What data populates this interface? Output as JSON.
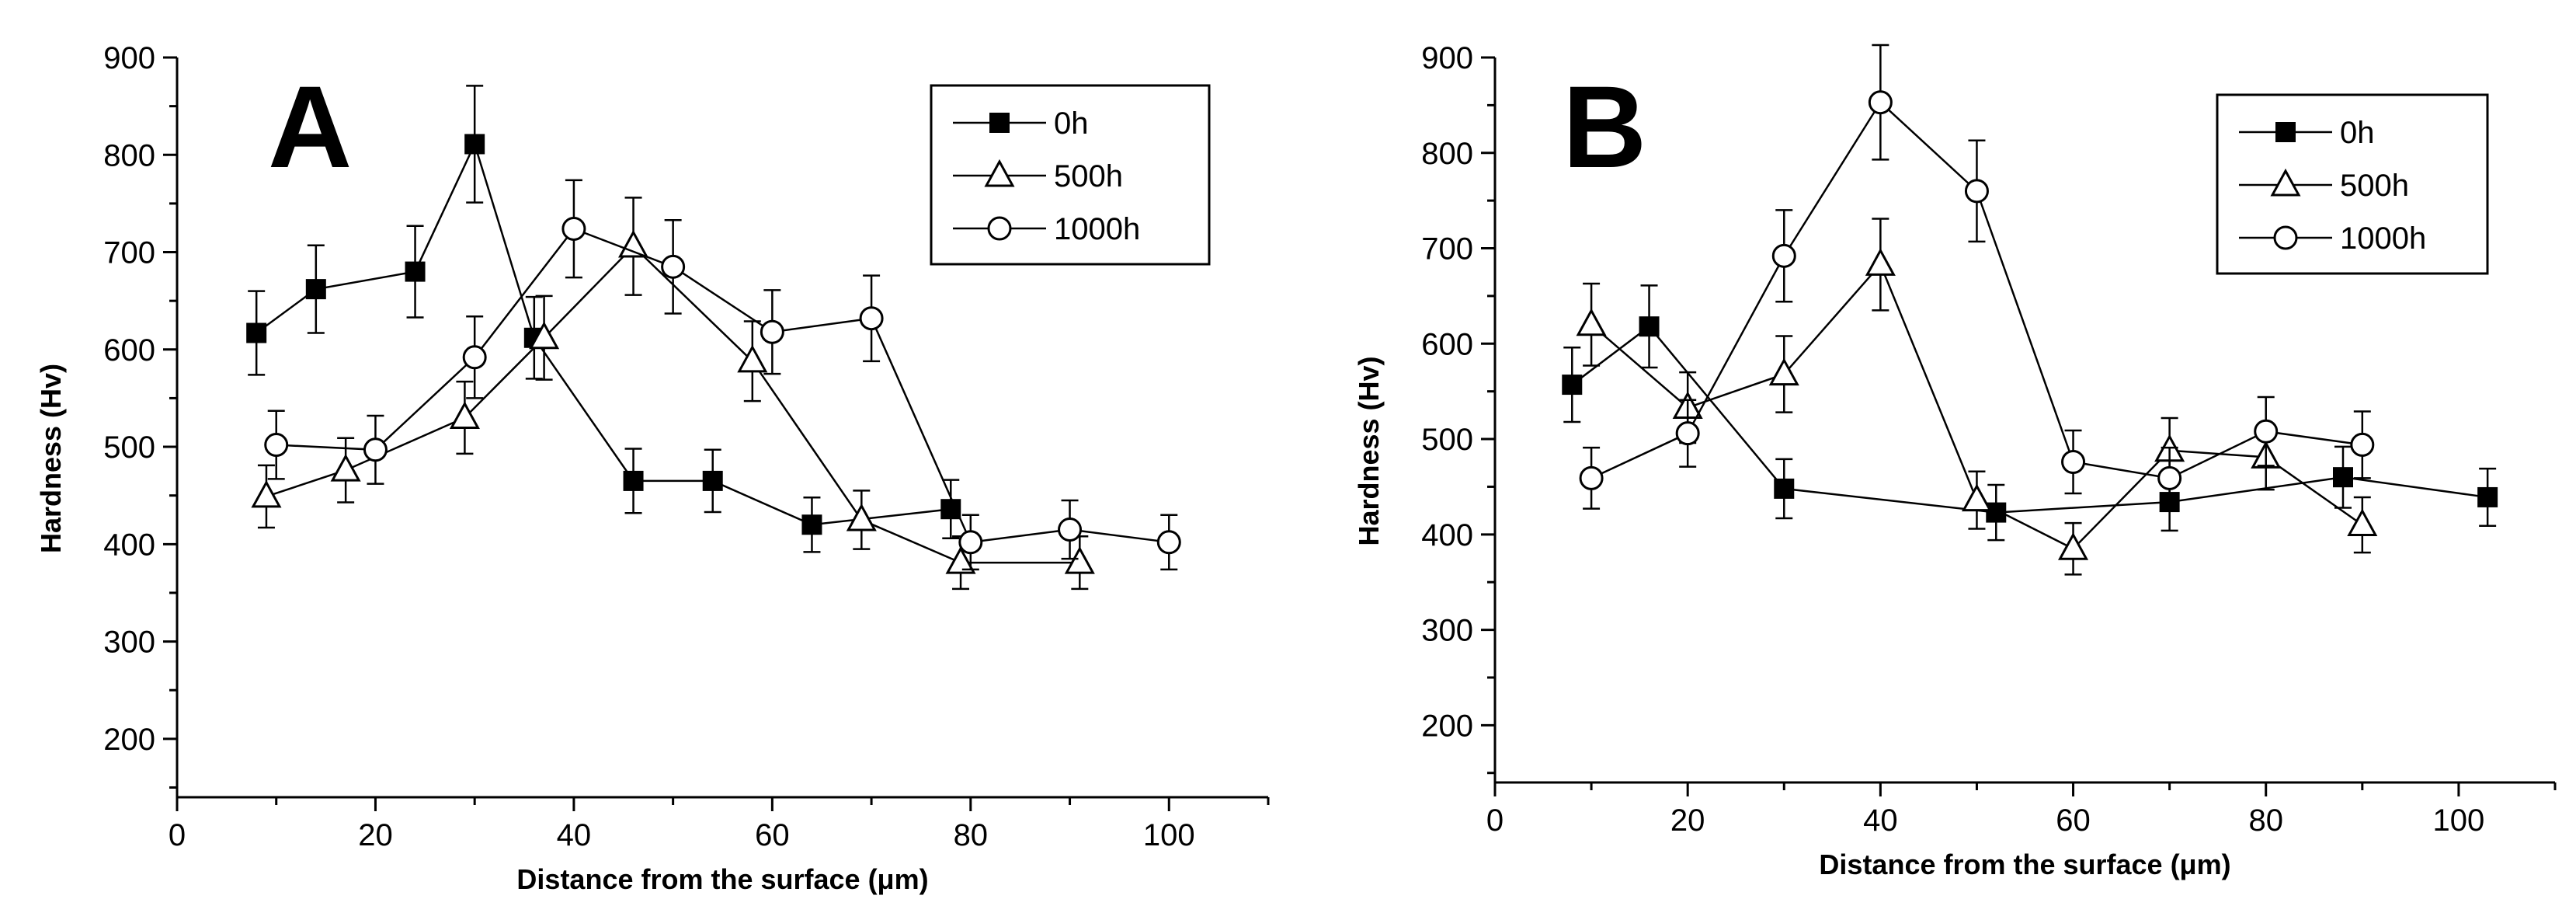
{
  "chart_data": [
    {
      "type": "scatter",
      "panel_label": "A",
      "xlabel": "Distance from the surface (μm)",
      "ylabel": "Hardness (Hv)",
      "xlim": [
        0,
        110
      ],
      "ylim": [
        140,
        900
      ],
      "x_ticks": [
        0,
        20,
        40,
        60,
        80,
        100
      ],
      "y_ticks": [
        200,
        300,
        400,
        500,
        600,
        700,
        800,
        900
      ],
      "legend_position": "top-right",
      "series": [
        {
          "name": "0h",
          "marker": "filled-square",
          "points": [
            {
              "x": 8,
              "y": 617,
              "err": 43
            },
            {
              "x": 14,
              "y": 662,
              "err": 45
            },
            {
              "x": 24,
              "y": 680,
              "err": 47
            },
            {
              "x": 30,
              "y": 811,
              "err": 60
            },
            {
              "x": 36,
              "y": 612,
              "err": 42
            },
            {
              "x": 46,
              "y": 465,
              "err": 33
            },
            {
              "x": 54,
              "y": 465,
              "err": 32
            },
            {
              "x": 64,
              "y": 420,
              "err": 28
            },
            {
              "x": 78,
              "y": 436,
              "err": 30
            }
          ]
        },
        {
          "name": "500h",
          "marker": "open-triangle",
          "points": [
            {
              "x": 9,
              "y": 449,
              "err": 32
            },
            {
              "x": 17,
              "y": 476,
              "err": 33
            },
            {
              "x": 29,
              "y": 530,
              "err": 37
            },
            {
              "x": 37,
              "y": 612,
              "err": 43
            },
            {
              "x": 46,
              "y": 706,
              "err": 50
            },
            {
              "x": 58,
              "y": 588,
              "err": 41
            },
            {
              "x": 69,
              "y": 425,
              "err": 30
            },
            {
              "x": 79,
              "y": 381,
              "err": 27
            },
            {
              "x": 91,
              "y": 381,
              "err": 27
            }
          ]
        },
        {
          "name": "1000h",
          "marker": "open-circle",
          "points": [
            {
              "x": 10,
              "y": 502,
              "err": 35
            },
            {
              "x": 20,
              "y": 497,
              "err": 35
            },
            {
              "x": 30,
              "y": 592,
              "err": 42
            },
            {
              "x": 40,
              "y": 724,
              "err": 50
            },
            {
              "x": 50,
              "y": 685,
              "err": 48
            },
            {
              "x": 60,
              "y": 618,
              "err": 43
            },
            {
              "x": 70,
              "y": 632,
              "err": 44
            },
            {
              "x": 80,
              "y": 402,
              "err": 28
            },
            {
              "x": 90,
              "y": 415,
              "err": 30
            },
            {
              "x": 100,
              "y": 402,
              "err": 28
            }
          ]
        }
      ]
    },
    {
      "type": "scatter",
      "panel_label": "B",
      "xlabel": "Distance from the surface (μm)",
      "ylabel": "Hardness (Hv)",
      "xlim": [
        0,
        110
      ],
      "ylim": [
        140,
        900
      ],
      "x_ticks": [
        0,
        20,
        40,
        60,
        80,
        100
      ],
      "y_ticks": [
        200,
        300,
        400,
        500,
        600,
        700,
        800,
        900
      ],
      "legend_position": "top-right",
      "series": [
        {
          "name": "0h",
          "marker": "filled-square",
          "points": [
            {
              "x": 8,
              "y": 557,
              "err": 39
            },
            {
              "x": 16,
              "y": 618,
              "err": 43
            },
            {
              "x": 30,
              "y": 448,
              "err": 31
            },
            {
              "x": 52,
              "y": 423,
              "err": 29
            },
            {
              "x": 70,
              "y": 434,
              "err": 30
            },
            {
              "x": 88,
              "y": 460,
              "err": 32
            },
            {
              "x": 103,
              "y": 439,
              "err": 30
            }
          ]
        },
        {
          "name": "500h",
          "marker": "open-triangle",
          "points": [
            {
              "x": 10,
              "y": 620,
              "err": 43
            },
            {
              "x": 20,
              "y": 533,
              "err": 37
            },
            {
              "x": 30,
              "y": 568,
              "err": 40
            },
            {
              "x": 40,
              "y": 683,
              "err": 48
            },
            {
              "x": 50,
              "y": 436,
              "err": 30
            },
            {
              "x": 60,
              "y": 385,
              "err": 27
            },
            {
              "x": 70,
              "y": 488,
              "err": 34
            },
            {
              "x": 80,
              "y": 481,
              "err": 34
            },
            {
              "x": 90,
              "y": 410,
              "err": 29
            }
          ]
        },
        {
          "name": "1000h",
          "marker": "open-circle",
          "points": [
            {
              "x": 10,
              "y": 459,
              "err": 32
            },
            {
              "x": 20,
              "y": 506,
              "err": 35
            },
            {
              "x": 30,
              "y": 692,
              "err": 48
            },
            {
              "x": 40,
              "y": 853,
              "err": 60
            },
            {
              "x": 50,
              "y": 760,
              "err": 53
            },
            {
              "x": 60,
              "y": 476,
              "err": 33
            },
            {
              "x": 70,
              "y": 459,
              "err": 32
            },
            {
              "x": 80,
              "y": 508,
              "err": 36
            },
            {
              "x": 90,
              "y": 494,
              "err": 35
            }
          ]
        }
      ]
    }
  ]
}
